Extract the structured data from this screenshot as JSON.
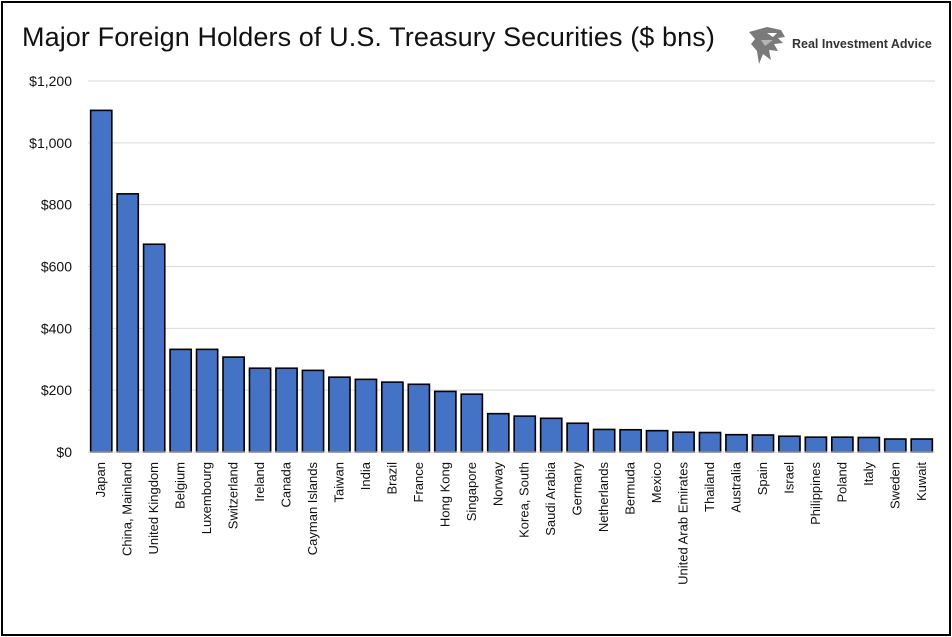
{
  "header": {
    "title": "Major Foreign Holders of U.S. Treasury Securities ($ bns)",
    "logo_text": "Real Investment Advice",
    "logo_icon": "eagle-head-icon"
  },
  "colors": {
    "bar_fill": "#4472C4",
    "bar_stroke": "#000000",
    "gridline": "#d9d9d9"
  },
  "chart_data": {
    "type": "bar",
    "title": "Major Foreign Holders of U.S. Treasury Securities ($ bns)",
    "xlabel": "",
    "ylabel": "",
    "ylim": [
      0,
      1200
    ],
    "yticks": [
      0,
      200,
      400,
      600,
      800,
      1000,
      1200
    ],
    "ytick_labels": [
      "$0",
      "$200",
      "$400",
      "$600",
      "$800",
      "$1,000",
      "$1,200"
    ],
    "grid": true,
    "legend": "none",
    "categories": [
      "Japan",
      "China, Mainland",
      "United Kingdom",
      "Belgium",
      "Luxembourg",
      "Switzerland",
      "Ireland",
      "Canada",
      "Cayman Islands",
      "Taiwan",
      "India",
      "Brazil",
      "France",
      "Hong Kong",
      "Singapore",
      "Norway",
      "Korea, South",
      "Saudi Arabia",
      "Germany",
      "Netherlands",
      "Bermuda",
      "Mexico",
      "United Arab Emirates",
      "Thailand",
      "Australia",
      "Spain",
      "Israel",
      "Philippines",
      "Poland",
      "Italy",
      "Sweden",
      "Kuwait"
    ],
    "values": [
      1105,
      835,
      672,
      332,
      332,
      307,
      271,
      271,
      264,
      242,
      235,
      226,
      219,
      196,
      187,
      124,
      116,
      109,
      93,
      73,
      72,
      69,
      64,
      63,
      56,
      55,
      51,
      48,
      48,
      47,
      42,
      42
    ]
  }
}
